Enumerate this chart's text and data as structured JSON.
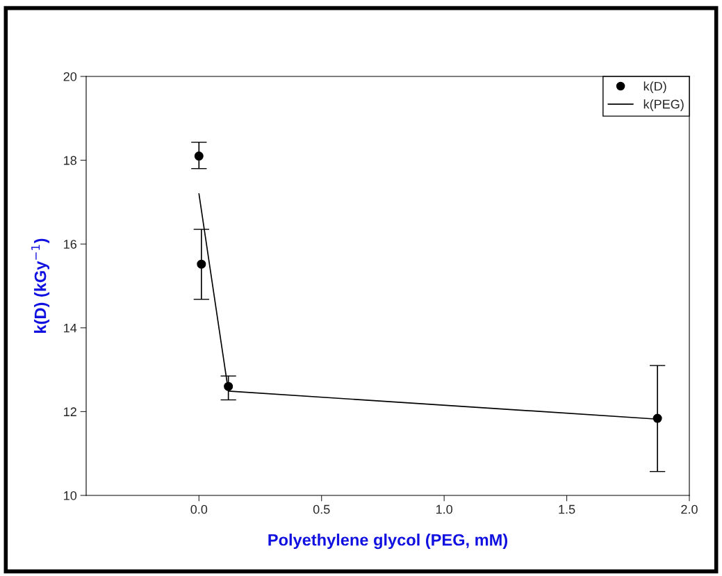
{
  "chart_data": {
    "type": "scatter",
    "xlabel": "Polyethylene glycol (PEG, mM)",
    "ylabel": "k(D) (kGy$^{−1}$)",
    "series": [
      {
        "name": "k(D)",
        "color": "#000000",
        "marker": "circle",
        "x": [
          0,
          0.01,
          0.12,
          1.87
        ],
        "values": [
          18.1,
          15.52,
          12.6,
          11.84
        ],
        "errors": [
          [
            17.8,
            18.43
          ],
          [
            14.68,
            16.35
          ],
          [
            12.28,
            12.85
          ],
          [
            10.57,
            13.1
          ]
        ]
      },
      {
        "name": "k(PEG)",
        "type": "line",
        "color": "#000000",
        "marker": "none",
        "line_style": "solid",
        "x": [
          0,
          0.12,
          1.87
        ],
        "values": [
          17.2,
          12.49,
          11.82
        ]
      }
    ],
    "xlim": [
      -0.46,
      2.0
    ],
    "xticks": [
      {
        "value": 0,
        "label": "0.0"
      },
      0.5,
      {
        "value": 1,
        "label": "1.0"
      },
      1.5,
      {
        "value": 2,
        "label": "2.0"
      }
    ],
    "ylim": [
      10,
      20
    ],
    "yticks": [
      10,
      12,
      14,
      16,
      18,
      20
    ],
    "grid": false,
    "legend": "top right"
  }
}
